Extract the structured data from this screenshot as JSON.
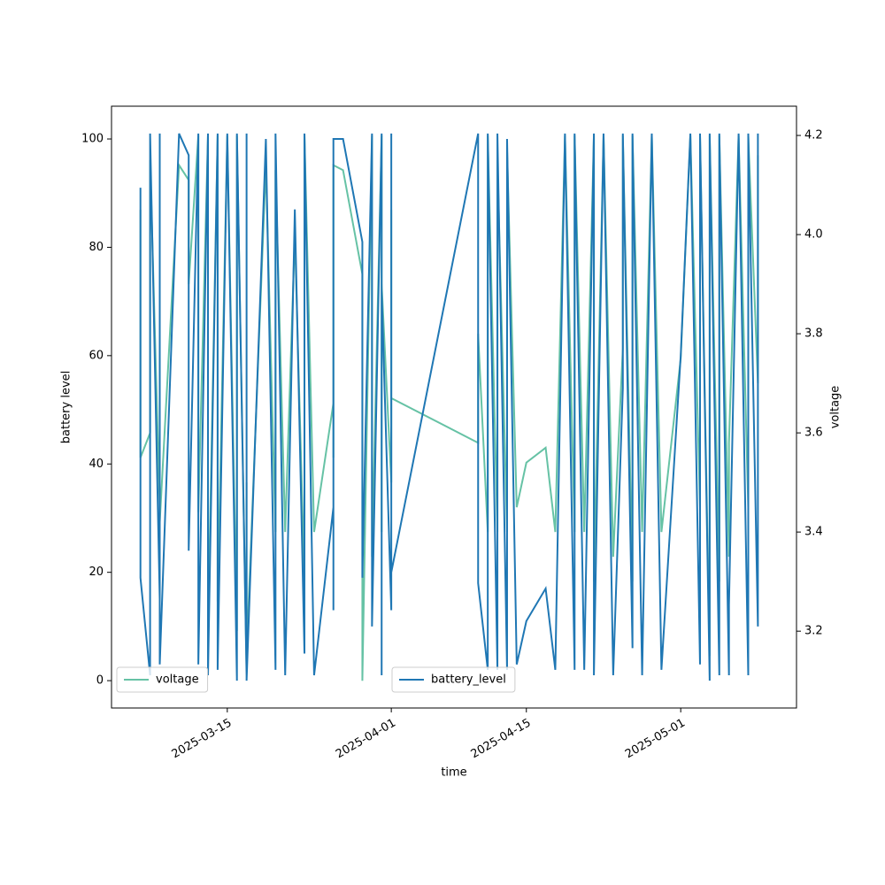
{
  "chart_data": {
    "type": "line",
    "x_label": "time",
    "y_label": "battery level",
    "y2_label": "voltage",
    "x": [
      "2025-03-06",
      "2025-03-06",
      "2025-03-07",
      "2025-03-07",
      "2025-03-08",
      "2025-03-08",
      "2025-03-08",
      "2025-03-10",
      "2025-03-11",
      "2025-03-11",
      "2025-03-12",
      "2025-03-12",
      "2025-03-13",
      "2025-03-13",
      "2025-03-14",
      "2025-03-14",
      "2025-03-15",
      "2025-03-16",
      "2025-03-16",
      "2025-03-17",
      "2025-03-17",
      "2025-03-17",
      "2025-03-19",
      "2025-03-20",
      "2025-03-20",
      "2025-03-21",
      "2025-03-22",
      "2025-03-23",
      "2025-03-23",
      "2025-03-24",
      "2025-03-26",
      "2025-03-26",
      "2025-03-26",
      "2025-03-27",
      "2025-03-29",
      "2025-03-29",
      "2025-03-30",
      "2025-03-30",
      "2025-03-31",
      "2025-03-31",
      "2025-03-31",
      "2025-04-01",
      "2025-04-01",
      "2025-04-01",
      "2025-04-10",
      "2025-04-10",
      "2025-04-11",
      "2025-04-11",
      "2025-04-12",
      "2025-04-12",
      "2025-04-13",
      "2025-04-13",
      "2025-04-14",
      "2025-04-15",
      "2025-04-17",
      "2025-04-18",
      "2025-04-19",
      "2025-04-20",
      "2025-04-20",
      "2025-04-21",
      "2025-04-22",
      "2025-04-22",
      "2025-04-23",
      "2025-04-24",
      "2025-04-25",
      "2025-04-25",
      "2025-04-26",
      "2025-04-26",
      "2025-04-27",
      "2025-04-28",
      "2025-04-29",
      "2025-05-01",
      "2025-05-02",
      "2025-05-03",
      "2025-05-03",
      "2025-05-04",
      "2025-05-04",
      "2025-05-05",
      "2025-05-05",
      "2025-05-06",
      "2025-05-06",
      "2025-05-07",
      "2025-05-08",
      "2025-05-08",
      "2025-05-09",
      "2025-05-09"
    ],
    "series": [
      {
        "name": "voltage",
        "color": "#66c2a5",
        "axis": "y2",
        "legend_loc": "lower left",
        "values": [
          4.05,
          3.55,
          3.6,
          4.15,
          3.45,
          3.75,
          3.42,
          4.14,
          4.11,
          3.9,
          4.2,
          3.44,
          4.2,
          3.2,
          4.2,
          3.26,
          4.2,
          3.2,
          4.2,
          3.12,
          3.5,
          3.15,
          4.14,
          3.4,
          4.13,
          3.4,
          4.0,
          3.3,
          4.2,
          3.4,
          3.66,
          3.55,
          4.14,
          4.13,
          3.92,
          3.1,
          4.2,
          3.35,
          4.2,
          3.4,
          3.9,
          3.5,
          4.05,
          3.67,
          3.58,
          3.8,
          3.4,
          4.2,
          3.4,
          4.15,
          3.4,
          4.17,
          3.45,
          3.54,
          3.57,
          3.4,
          4.2,
          3.4,
          4.2,
          3.4,
          4.2,
          3.3,
          4.2,
          3.35,
          3.77,
          4.2,
          3.3,
          4.2,
          3.4,
          4.2,
          3.4,
          3.75,
          4.2,
          3.45,
          4.2,
          3.15,
          4.2,
          3.3,
          4.2,
          3.35,
          3.58,
          4.2,
          3.45,
          4.2,
          3.7,
          4.16
        ]
      },
      {
        "name": "battery_level",
        "color": "#1f77b4",
        "axis": "y",
        "legend_loc": "lower center",
        "values": [
          91,
          19,
          1,
          101,
          15,
          101,
          3,
          101,
          97,
          24,
          101,
          3,
          101,
          1,
          101,
          2,
          101,
          0,
          101,
          1,
          101,
          0,
          100,
          2,
          101,
          1,
          87,
          5,
          101,
          1,
          32,
          13,
          100,
          100,
          81,
          19,
          101,
          10,
          101,
          1,
          72,
          13,
          101,
          20,
          101,
          18,
          2,
          101,
          2,
          101,
          2,
          100,
          3,
          11,
          17,
          2,
          101,
          2,
          101,
          2,
          101,
          1,
          101,
          1,
          54,
          101,
          6,
          101,
          1,
          101,
          2,
          60,
          101,
          3,
          101,
          0,
          101,
          1,
          101,
          1,
          14,
          101,
          1,
          101,
          10,
          101
        ]
      }
    ],
    "xlim": [
      "2025-03-03",
      "2025-05-13"
    ],
    "xticks": [
      "2025-03-15",
      "2025-04-01",
      "2025-04-15",
      "2025-05-01"
    ],
    "ylim": [
      -5.05,
      106.05
    ],
    "yticks": [
      0,
      20,
      40,
      60,
      80,
      100
    ],
    "y2lim": [
      3.045,
      4.259
    ],
    "y2ticks": [
      3.2,
      3.4,
      3.6,
      3.8,
      {
        "value": 4.0,
        "label": "4.0"
      },
      4.2
    ]
  }
}
